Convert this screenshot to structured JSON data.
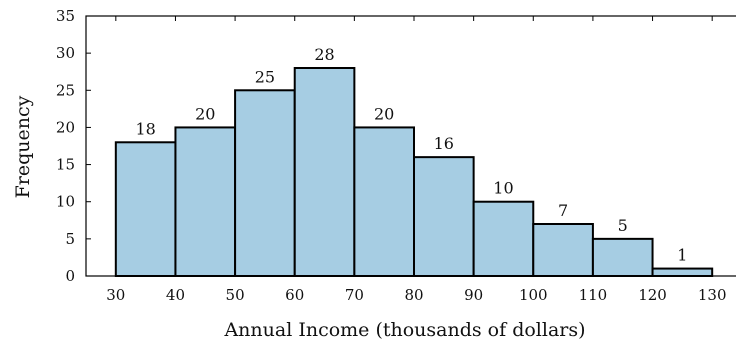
{
  "chart_data": {
    "type": "bar",
    "bins": [
      {
        "from": 30,
        "to": 40,
        "value": 18
      },
      {
        "from": 40,
        "to": 50,
        "value": 20
      },
      {
        "from": 50,
        "to": 60,
        "value": 25
      },
      {
        "from": 60,
        "to": 70,
        "value": 28
      },
      {
        "from": 70,
        "to": 80,
        "value": 20
      },
      {
        "from": 80,
        "to": 90,
        "value": 16
      },
      {
        "from": 90,
        "to": 100,
        "value": 10
      },
      {
        "from": 100,
        "to": 110,
        "value": 7
      },
      {
        "from": 110,
        "to": 120,
        "value": 5
      },
      {
        "from": 120,
        "to": 130,
        "value": 1
      }
    ],
    "xlabel": "Annual Income (thousands of dollars)",
    "ylabel": "Frequency",
    "xticks": [
      30,
      40,
      50,
      60,
      70,
      80,
      90,
      100,
      110,
      120,
      130
    ],
    "yticks": [
      0,
      5,
      10,
      15,
      20,
      25,
      30,
      35
    ],
    "xlim": [
      25,
      135
    ],
    "ylim": [
      0,
      35
    ],
    "grid": false,
    "bar_color": "#a6cde3",
    "edge_color": "#000000"
  }
}
